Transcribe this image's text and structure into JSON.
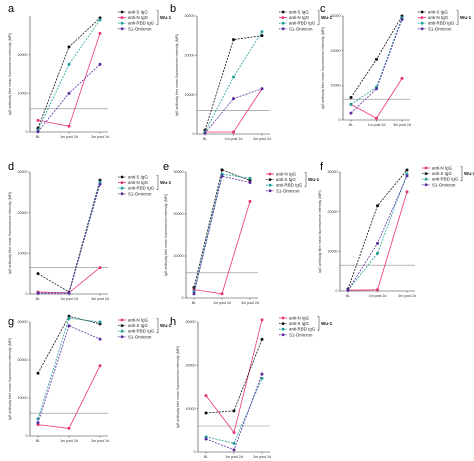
{
  "chart_data": [
    {
      "panel": "a",
      "type": "line",
      "categories": [
        "BL",
        "1m post 2d",
        "3m post 2d"
      ],
      "ylabel": "IgG antibody titre mean fluorescence intensity (MFI)",
      "ylim": [
        0,
        30000
      ],
      "yticks": [
        0,
        10000,
        20000
      ],
      "reference_line": 6000,
      "legend": {
        "placement": "right",
        "group": "Wu-1"
      },
      "series": [
        {
          "name": "anti-S IgG",
          "color": "#111111",
          "dash": true,
          "values": [
            1000,
            22000,
            29500
          ]
        },
        {
          "name": "anti-N IgG",
          "color": "#e8337a",
          "dash": false,
          "values": [
            3000,
            1500,
            25500
          ]
        },
        {
          "name": "anti-RBD IgG",
          "color": "#1f9e9a",
          "dash": true,
          "values": [
            500,
            17500,
            29000
          ]
        },
        {
          "name": "S1-Omicron",
          "color": "#5a2ca0",
          "dash": true,
          "values": [
            100,
            10000,
            17500
          ]
        }
      ]
    },
    {
      "panel": "b",
      "type": "line",
      "categories": [
        "BL",
        "1m post 2d",
        "3m post 2d"
      ],
      "ylabel": "IgG antibody titre mean fluorescence intensity (MFI)",
      "ylim": [
        0,
        30000
      ],
      "yticks": [
        0,
        10000,
        20000,
        30000
      ],
      "reference_line": 6000,
      "legend": {
        "placement": "right",
        "group": "Wu-1"
      },
      "series": [
        {
          "name": "anti-S IgG",
          "color": "#111111",
          "dash": true,
          "values": [
            1000,
            24000,
            25000
          ]
        },
        {
          "name": "anti-N IgG",
          "color": "#e8337a",
          "dash": false,
          "values": [
            500,
            500,
            11500
          ]
        },
        {
          "name": "anti-RBD IgG",
          "color": "#1f9e9a",
          "dash": true,
          "values": [
            500,
            14500,
            26000
          ]
        },
        {
          "name": "S1-Omicron",
          "color": "#5a2ca0",
          "dash": true,
          "values": [
            200,
            9000,
            11500
          ]
        }
      ]
    },
    {
      "panel": "c",
      "type": "line",
      "categories": [
        "BL",
        "1m post 2d",
        "3m post 2d"
      ],
      "ylabel": "IgG antibody titre mean fluorescence intensity (MFI)",
      "ylim": [
        0,
        30000
      ],
      "yticks": [
        0,
        10000,
        20000,
        30000
      ],
      "reference_line": 6000,
      "legend": {
        "placement": "right",
        "group": "Wu-1"
      },
      "series": [
        {
          "name": "anti-S IgG",
          "color": "#111111",
          "dash": true,
          "values": [
            6500,
            17500,
            30000
          ]
        },
        {
          "name": "anti-N IgG",
          "color": "#e8337a",
          "dash": false,
          "values": [
            4500,
            500,
            12000
          ]
        },
        {
          "name": "anti-RBD IgG",
          "color": "#1f9e9a",
          "dash": true,
          "values": [
            4500,
            9500,
            29500
          ]
        },
        {
          "name": "S1-Omicron",
          "color": "#5a2ca0",
          "dash": true,
          "values": [
            2000,
            9000,
            29000
          ]
        }
      ]
    },
    {
      "panel": "d",
      "type": "line",
      "categories": [
        "BL",
        "1m post 2d",
        "3m post 2d"
      ],
      "ylabel": "IgG antibody titre mean fluorescence intensity (MFI)",
      "ylim": [
        0,
        30000
      ],
      "yticks": [
        0,
        10000,
        20000,
        30000
      ],
      "reference_line": 6500,
      "legend": {
        "placement": "right",
        "group": "Wu-1"
      },
      "series": [
        {
          "name": "anti-S IgG",
          "color": "#111111",
          "dash": true,
          "values": [
            5000,
            500,
            28000
          ]
        },
        {
          "name": "anti-N IgG",
          "color": "#e8337a",
          "dash": false,
          "values": [
            500,
            300,
            6500
          ]
        },
        {
          "name": "anti-RBD IgG",
          "color": "#1f9e9a",
          "dash": true,
          "values": [
            200,
            200,
            27500
          ]
        },
        {
          "name": "S1-Omicron",
          "color": "#5a2ca0",
          "dash": true,
          "values": [
            200,
            200,
            27000
          ]
        }
      ]
    },
    {
      "panel": "e",
      "type": "line",
      "categories": [
        "BL",
        "1m post 2d",
        "3m post 2d"
      ],
      "ylabel": "IgG antibody titre mean fluorescence intensity (MFI)",
      "ylim": [
        0,
        30000
      ],
      "yticks": [
        0,
        10000,
        20000,
        30000
      ],
      "reference_line": 6000,
      "legend": {
        "placement": "right",
        "group": "Wu-1"
      },
      "series": [
        {
          "name": "anti-N IgG",
          "color": "#e8337a",
          "dash": false,
          "values": [
            2000,
            1000,
            23000
          ]
        },
        {
          "name": "anti-S IgG",
          "color": "#111111",
          "dash": true,
          "values": [
            2500,
            30500,
            28000
          ]
        },
        {
          "name": "anti-RBD IgG",
          "color": "#1f9e9a",
          "dash": true,
          "values": [
            1500,
            29500,
            28500
          ]
        },
        {
          "name": "S1-Omicron",
          "color": "#5a2ca0",
          "dash": true,
          "values": [
            1000,
            29000,
            27500
          ]
        }
      ]
    },
    {
      "panel": "f",
      "type": "line",
      "categories": [
        "BL",
        "1m post 2d",
        "3m post 2d"
      ],
      "ylabel": "IgG antibody titre mean fluorescence intensity (MFI)",
      "ylim": [
        0,
        30000
      ],
      "yticks": [
        0,
        10000,
        20000,
        30000
      ],
      "reference_line": 6500,
      "legend": {
        "placement": "right",
        "group": "Wu-1"
      },
      "series": [
        {
          "name": "anti-N IgG",
          "color": "#e8337a",
          "dash": false,
          "values": [
            200,
            300,
            25000
          ]
        },
        {
          "name": "anti-S IgG",
          "color": "#111111",
          "dash": true,
          "values": [
            500,
            21500,
            30500
          ]
        },
        {
          "name": "anti-RBD IgG",
          "color": "#1f9e9a",
          "dash": true,
          "values": [
            200,
            9500,
            29500
          ]
        },
        {
          "name": "S1-Omicron",
          "color": "#5a2ca0",
          "dash": true,
          "values": [
            200,
            12000,
            29000
          ]
        }
      ]
    },
    {
      "panel": "g",
      "type": "line",
      "categories": [
        "BL",
        "1m post 2d",
        "3m post 2d"
      ],
      "ylabel": "IgG antibody titre mean fluorescence intensity (MFI)",
      "ylim": [
        0,
        30000
      ],
      "yticks": [
        0,
        10000,
        20000,
        30000
      ],
      "reference_line": 6000,
      "legend": {
        "placement": "right",
        "group": "Wu-1"
      },
      "series": [
        {
          "name": "anti-N IgG",
          "color": "#e8337a",
          "dash": false,
          "values": [
            3000,
            2000,
            18500
          ]
        },
        {
          "name": "anti-S IgG",
          "color": "#111111",
          "dash": true,
          "values": [
            16500,
            31500,
            29500
          ]
        },
        {
          "name": "anti-RBD IgG",
          "color": "#1f9e9a",
          "dash": true,
          "values": [
            4500,
            31000,
            30000
          ]
        },
        {
          "name": "S1-Omicron",
          "color": "#5a2ca0",
          "dash": true,
          "values": [
            3500,
            29000,
            25500
          ]
        }
      ]
    },
    {
      "panel": "h",
      "type": "line",
      "categories": [
        "BL",
        "1m post 2d",
        "3m post 2d"
      ],
      "ylabel": "IgG antibody titre mean fluorescence intensity (MFI)",
      "ylim": [
        0,
        30000
      ],
      "yticks": [
        0,
        10000,
        20000,
        30000
      ],
      "reference_line": 6000,
      "legend": {
        "placement": "right",
        "group": "Wu-1"
      },
      "series": [
        {
          "name": "anti-N IgG",
          "color": "#e8337a",
          "dash": false,
          "values": [
            13000,
            4500,
            30500
          ]
        },
        {
          "name": "anti-S IgG",
          "color": "#111111",
          "dash": true,
          "values": [
            9000,
            9500,
            26000
          ]
        },
        {
          "name": "anti-RBD IgG",
          "color": "#1f9e9a",
          "dash": true,
          "values": [
            3500,
            2000,
            17000
          ]
        },
        {
          "name": "S1-Omicron",
          "color": "#5a2ca0",
          "dash": true,
          "values": [
            3000,
            500,
            18000
          ]
        }
      ]
    }
  ]
}
